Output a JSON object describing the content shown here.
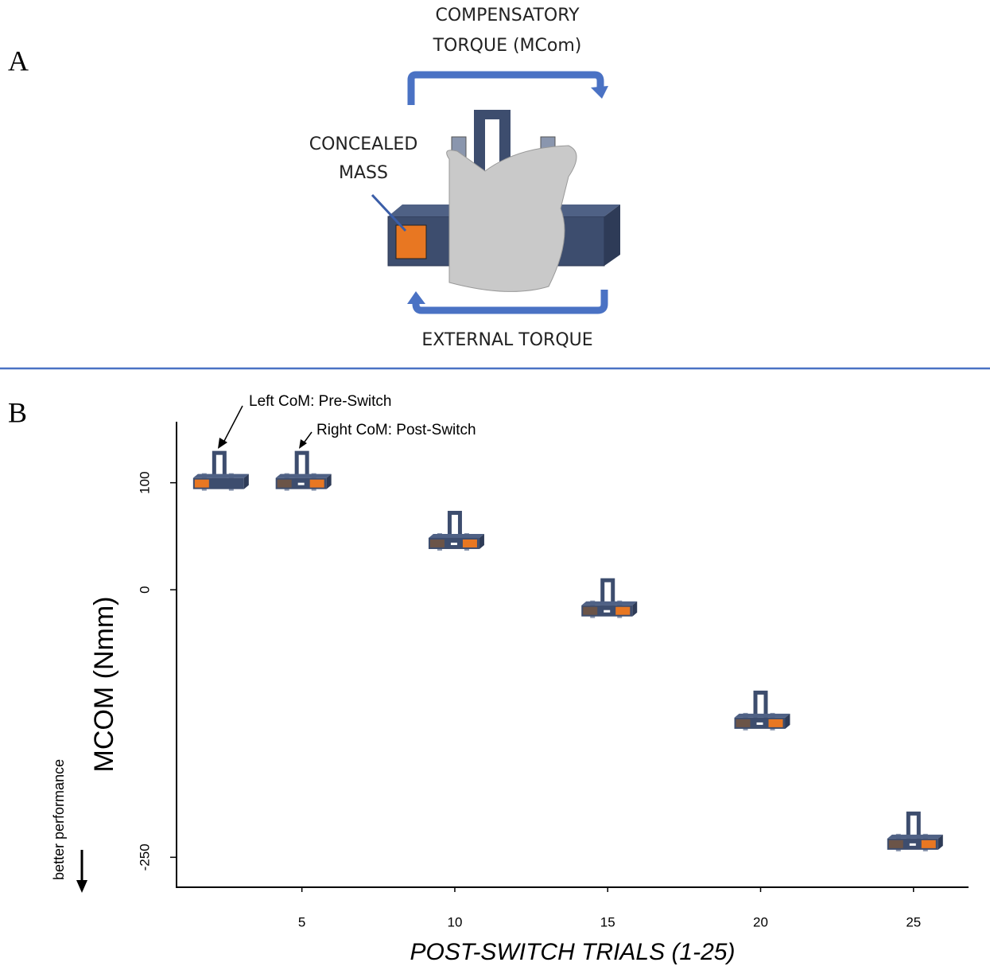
{
  "panels": {
    "a": "A",
    "b": "B"
  },
  "diagram": {
    "compensatory_line1": "COMPENSATORY",
    "compensatory_line2": "TORQUE (MCom)",
    "concealed_line1": "CONCEALED",
    "concealed_line2": "MASS",
    "external": "EXTERNAL TORQUE"
  },
  "chart_data": {
    "type": "scatter",
    "x": [
      2.3,
      5,
      10,
      15,
      20,
      25
    ],
    "values": [
      100,
      100,
      44,
      -19,
      -124,
      -237
    ],
    "xlim": [
      0.9,
      26.8
    ],
    "xticks": [
      5,
      10,
      15,
      20,
      25
    ],
    "ylim": [
      -278,
      157
    ],
    "yticks": [
      100,
      0,
      -250
    ],
    "x_label": "POST-SWITCH TRIALS (1-25)",
    "y_label": "MCOM (Nmm)",
    "side_note": "better performance",
    "annotations": [
      "Left CoM: Pre-Switch",
      "Right CoM: Post-Switch"
    ]
  }
}
